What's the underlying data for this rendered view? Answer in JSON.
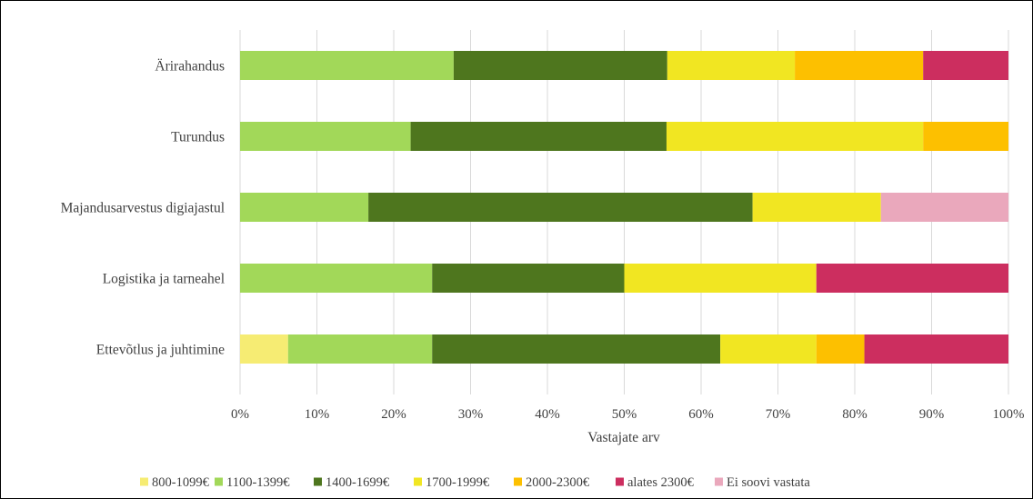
{
  "chart_data": {
    "type": "bar",
    "orientation": "horizontal",
    "stacked": "percent",
    "title": "",
    "xlabel": "Vastajate arv",
    "ylabel": "",
    "xlim": [
      0,
      1
    ],
    "x_ticks": [
      "0%",
      "10%",
      "20%",
      "30%",
      "40%",
      "50%",
      "60%",
      "70%",
      "80%",
      "90%",
      "100%"
    ],
    "grid": "vertical",
    "legend_position": "bottom",
    "categories": [
      "Ärirahandus",
      "Turundus",
      "Majandusarvestus digiajastul",
      "Logistika ja tarneahel",
      "Ettevõtlus ja juhtimine"
    ],
    "series": [
      {
        "name": "800-1099€",
        "color": "#F6EC73",
        "values": [
          0,
          0,
          0,
          0,
          0.0625
        ]
      },
      {
        "name": "1100-1399€",
        "color": "#A2D859",
        "values": [
          0.278,
          0.222,
          0.167,
          0.25,
          0.1875
        ]
      },
      {
        "name": "1400-1699€",
        "color": "#4E761E",
        "values": [
          0.278,
          0.333,
          0.5,
          0.25,
          0.375
        ]
      },
      {
        "name": "1700-1999€",
        "color": "#F1E622",
        "values": [
          0.166,
          0.334,
          0.167,
          0.25,
          0.125
        ]
      },
      {
        "name": "2000-2300€",
        "color": "#FDC000",
        "values": [
          0.167,
          0.111,
          0,
          0,
          0.0625
        ]
      },
      {
        "name": "alates 2300€",
        "color": "#CC2E5F",
        "values": [
          0.111,
          0,
          0,
          0.25,
          0.1875
        ]
      },
      {
        "name": "Ei soovi vastata",
        "color": "#EAA8BC",
        "values": [
          0,
          0,
          0.166,
          0,
          0
        ]
      }
    ]
  }
}
